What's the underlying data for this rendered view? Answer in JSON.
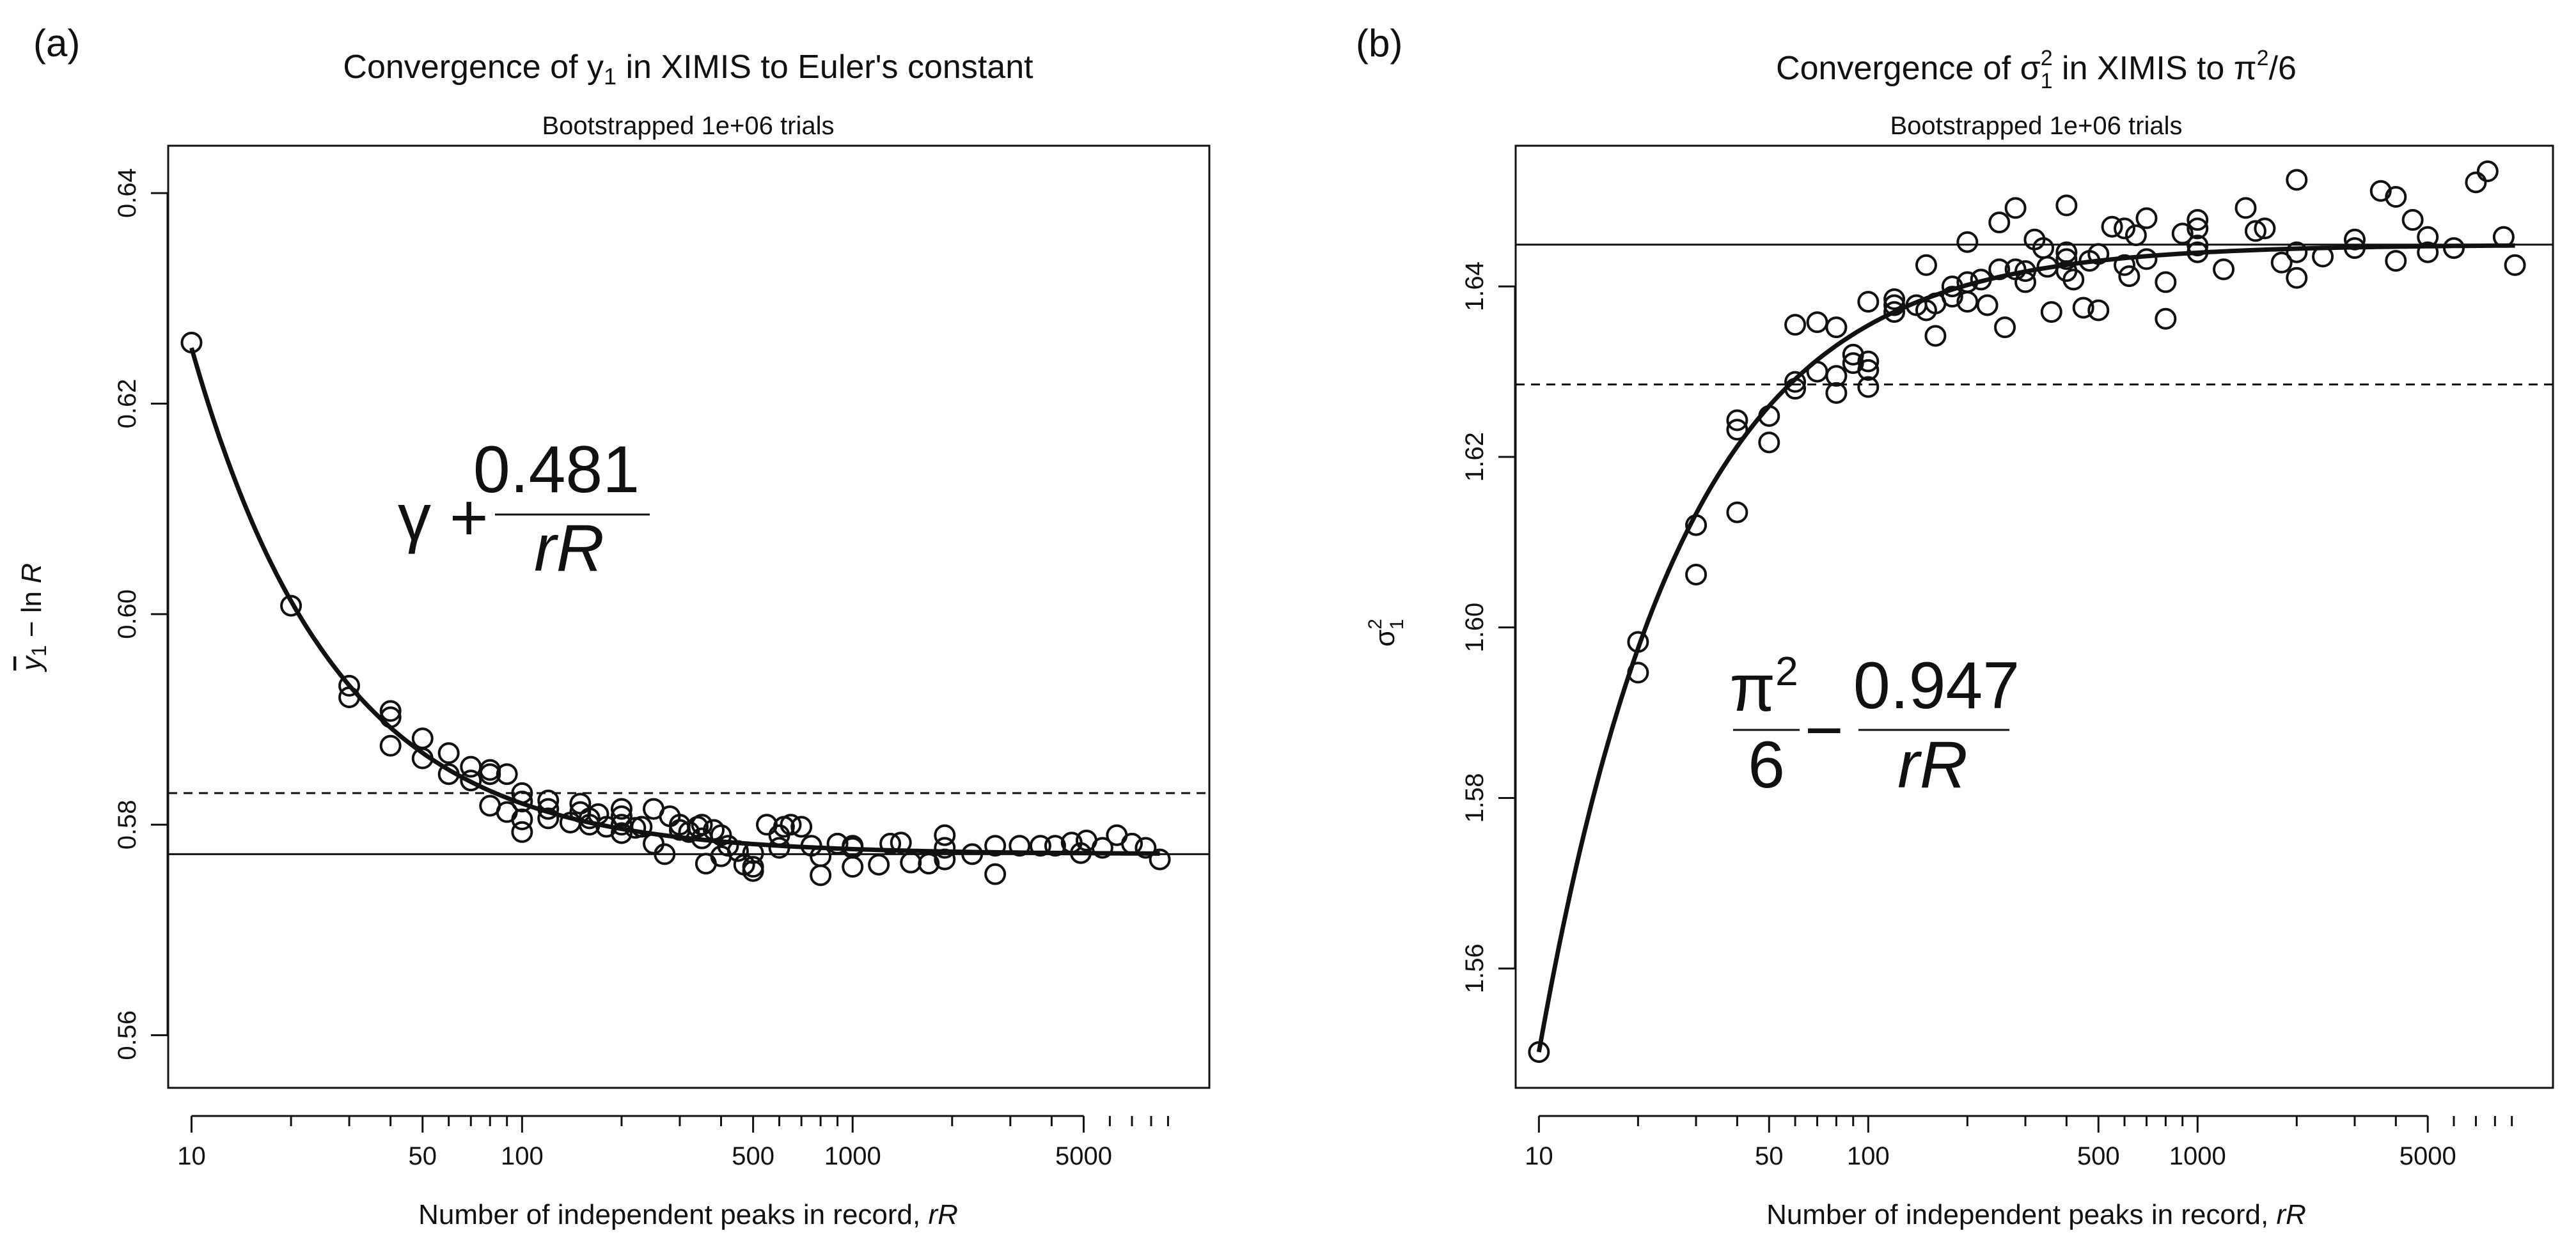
{
  "chart_data": [
    {
      "panel_label": "(a)",
      "type": "scatter",
      "title_prefix": "Convergence of ",
      "title_symbol": "y",
      "title_subscript": "1",
      "title_suffix": " in XIMIS to Euler's constant",
      "subtitle": "Bootstrapped 1e+06 trials",
      "xlabel_text": "Number of independent peaks in record, ",
      "xlabel_italic": "rR",
      "ylabel_symbol": "y",
      "ylabel_subscript": "1",
      "ylabel_suffix": " − ln ",
      "ylabel_italic": "R",
      "x_scale": "log",
      "xlim": [
        8.5,
        12000
      ],
      "ylim": [
        0.555,
        0.6445
      ],
      "x_ticks": [
        10,
        50,
        100,
        500,
        1000,
        5000
      ],
      "x_tick_labels": [
        "10",
        "50",
        "100",
        "500",
        "1000",
        "5000"
      ],
      "y_ticks": [
        0.56,
        0.58,
        0.6,
        0.62,
        0.64
      ],
      "y_tick_labels": [
        "0.56",
        "0.58",
        "0.60",
        "0.62",
        "0.64"
      ],
      "formula": {
        "lead": "γ +",
        "numerator": "0.481",
        "denominator": "rR"
      },
      "curve": {
        "base": 0.5772,
        "coef": 0.481,
        "sign": 1
      },
      "hlines": [
        {
          "y": 0.5772,
          "style": "solid"
        },
        {
          "y": 0.583,
          "style": "dashed"
        }
      ],
      "points": [
        [
          10,
          0.6258
        ],
        [
          20,
          0.6008
        ],
        [
          30,
          0.5932
        ],
        [
          30,
          0.5921
        ],
        [
          40,
          0.5908
        ],
        [
          40,
          0.5902
        ],
        [
          40,
          0.5875
        ],
        [
          50,
          0.5882
        ],
        [
          50,
          0.5863
        ],
        [
          60,
          0.5868
        ],
        [
          60,
          0.5848
        ],
        [
          70,
          0.5855
        ],
        [
          70,
          0.5842
        ],
        [
          80,
          0.5852
        ],
        [
          80,
          0.5818
        ],
        [
          80,
          0.5848
        ],
        [
          90,
          0.5848
        ],
        [
          90,
          0.5812
        ],
        [
          100,
          0.583
        ],
        [
          100,
          0.5822
        ],
        [
          100,
          0.5805
        ],
        [
          100,
          0.5793
        ],
        [
          120,
          0.5823
        ],
        [
          120,
          0.5815
        ],
        [
          120,
          0.5806
        ],
        [
          140,
          0.5802
        ],
        [
          150,
          0.582
        ],
        [
          150,
          0.5812
        ],
        [
          160,
          0.5806
        ],
        [
          160,
          0.58
        ],
        [
          170,
          0.581
        ],
        [
          180,
          0.5798
        ],
        [
          200,
          0.5815
        ],
        [
          200,
          0.5808
        ],
        [
          200,
          0.58
        ],
        [
          200,
          0.5792
        ],
        [
          220,
          0.5797
        ],
        [
          230,
          0.5798
        ],
        [
          250,
          0.5815
        ],
        [
          250,
          0.5782
        ],
        [
          270,
          0.5772
        ],
        [
          280,
          0.5808
        ],
        [
          300,
          0.58
        ],
        [
          300,
          0.5795
        ],
        [
          320,
          0.5793
        ],
        [
          340,
          0.5798
        ],
        [
          350,
          0.58
        ],
        [
          350,
          0.5787
        ],
        [
          360,
          0.5763
        ],
        [
          380,
          0.5795
        ],
        [
          400,
          0.579
        ],
        [
          400,
          0.577
        ],
        [
          420,
          0.578
        ],
        [
          450,
          0.5775
        ],
        [
          470,
          0.5762
        ],
        [
          500,
          0.5773
        ],
        [
          500,
          0.576
        ],
        [
          500,
          0.5756
        ],
        [
          550,
          0.58
        ],
        [
          600,
          0.579
        ],
        [
          600,
          0.5778
        ],
        [
          620,
          0.5798
        ],
        [
          650,
          0.58
        ],
        [
          700,
          0.5798
        ],
        [
          750,
          0.578
        ],
        [
          800,
          0.577
        ],
        [
          800,
          0.5752
        ],
        [
          900,
          0.5782
        ],
        [
          1000,
          0.578
        ],
        [
          1000,
          0.5778
        ],
        [
          1000,
          0.576
        ],
        [
          1200,
          0.5762
        ],
        [
          1300,
          0.5782
        ],
        [
          1400,
          0.5783
        ],
        [
          1500,
          0.5764
        ],
        [
          1700,
          0.5763
        ],
        [
          1900,
          0.579
        ],
        [
          1900,
          0.5778
        ],
        [
          1900,
          0.5767
        ],
        [
          2300,
          0.5772
        ],
        [
          2700,
          0.578
        ],
        [
          2700,
          0.5753
        ],
        [
          3200,
          0.578
        ],
        [
          3700,
          0.578
        ],
        [
          4100,
          0.578
        ],
        [
          4600,
          0.5783
        ],
        [
          4900,
          0.5773
        ],
        [
          5100,
          0.5785
        ],
        [
          5700,
          0.5778
        ],
        [
          6300,
          0.579
        ],
        [
          7000,
          0.5782
        ],
        [
          7700,
          0.5778
        ],
        [
          8500,
          0.5767
        ]
      ]
    },
    {
      "panel_label": "(b)",
      "type": "scatter",
      "title_prefix": "Convergence of ",
      "title_symbol": "σ",
      "title_superscript": "2",
      "title_subscript": "1",
      "title_suffix": " in XIMIS to π",
      "title_tail_superscript": "2",
      "title_tail": "/6",
      "subtitle": "Bootstrapped 1e+06 trials",
      "xlabel_text": "Number of independent peaks in record, ",
      "xlabel_italic": "rR",
      "ylabel_symbol": "σ",
      "ylabel_superscript": "2",
      "ylabel_subscript": "1",
      "x_scale": "log",
      "xlim": [
        8.5,
        12000
      ],
      "ylim": [
        1.546,
        1.6565
      ],
      "x_ticks": [
        10,
        50,
        100,
        500,
        1000,
        5000
      ],
      "x_tick_labels": [
        "10",
        "50",
        "100",
        "500",
        "1000",
        "5000"
      ],
      "y_ticks": [
        1.56,
        1.58,
        1.6,
        1.62,
        1.64
      ],
      "y_tick_labels": [
        "1.56",
        "1.58",
        "1.60",
        "1.62",
        "1.64"
      ],
      "formula": {
        "num1": "π",
        "num1_sup": "2",
        "den1": "6",
        "minus": "−",
        "numerator": "0.947",
        "denominator": "rR"
      },
      "curve": {
        "base": 1.6449,
        "coef": 0.947,
        "sign": -1
      },
      "hlines": [
        {
          "y": 1.6449,
          "style": "solid"
        },
        {
          "y": 1.6285,
          "style": "dashed"
        }
      ],
      "points": [
        [
          10,
          1.5502
        ],
        [
          20,
          1.5983
        ],
        [
          20,
          1.5947
        ],
        [
          30,
          1.612
        ],
        [
          30,
          1.6062
        ],
        [
          40,
          1.6243
        ],
        [
          40,
          1.6232
        ],
        [
          40,
          1.6135
        ],
        [
          50,
          1.6248
        ],
        [
          50,
          1.6217
        ],
        [
          60,
          1.6355
        ],
        [
          60,
          1.6288
        ],
        [
          60,
          1.628
        ],
        [
          70,
          1.6358
        ],
        [
          70,
          1.63
        ],
        [
          80,
          1.6352
        ],
        [
          80,
          1.6295
        ],
        [
          80,
          1.6275
        ],
        [
          90,
          1.632
        ],
        [
          90,
          1.631
        ],
        [
          100,
          1.6382
        ],
        [
          100,
          1.6312
        ],
        [
          100,
          1.6302
        ],
        [
          100,
          1.6282
        ],
        [
          120,
          1.6385
        ],
        [
          120,
          1.6378
        ],
        [
          120,
          1.637
        ],
        [
          140,
          1.6378
        ],
        [
          150,
          1.6425
        ],
        [
          150,
          1.6372
        ],
        [
          160,
          1.638
        ],
        [
          160,
          1.6342
        ],
        [
          180,
          1.64
        ],
        [
          180,
          1.6388
        ],
        [
          200,
          1.6452
        ],
        [
          200,
          1.6405
        ],
        [
          200,
          1.6382
        ],
        [
          220,
          1.6408
        ],
        [
          230,
          1.6378
        ],
        [
          250,
          1.6475
        ],
        [
          250,
          1.642
        ],
        [
          260,
          1.6352
        ],
        [
          280,
          1.6492
        ],
        [
          280,
          1.642
        ],
        [
          300,
          1.6418
        ],
        [
          300,
          1.6405
        ],
        [
          320,
          1.6455
        ],
        [
          340,
          1.6445
        ],
        [
          350,
          1.6423
        ],
        [
          360,
          1.637
        ],
        [
          400,
          1.6495
        ],
        [
          400,
          1.644
        ],
        [
          400,
          1.6432
        ],
        [
          400,
          1.6418
        ],
        [
          420,
          1.6408
        ],
        [
          450,
          1.6375
        ],
        [
          470,
          1.643
        ],
        [
          500,
          1.6438
        ],
        [
          500,
          1.6372
        ],
        [
          550,
          1.647
        ],
        [
          600,
          1.6468
        ],
        [
          600,
          1.6425
        ],
        [
          620,
          1.6412
        ],
        [
          650,
          1.646
        ],
        [
          700,
          1.648
        ],
        [
          700,
          1.6432
        ],
        [
          800,
          1.6405
        ],
        [
          800,
          1.6362
        ],
        [
          900,
          1.6462
        ],
        [
          1000,
          1.6478
        ],
        [
          1000,
          1.6468
        ],
        [
          1000,
          1.6448
        ],
        [
          1000,
          1.644
        ],
        [
          1200,
          1.642
        ],
        [
          1400,
          1.6492
        ],
        [
          1500,
          1.6465
        ],
        [
          1600,
          1.6468
        ],
        [
          1800,
          1.6428
        ],
        [
          2000,
          1.6525
        ],
        [
          2000,
          1.644
        ],
        [
          2000,
          1.641
        ],
        [
          2400,
          1.6435
        ],
        [
          3000,
          1.6455
        ],
        [
          3000,
          1.6445
        ],
        [
          3600,
          1.6512
        ],
        [
          4000,
          1.6505
        ],
        [
          4000,
          1.643
        ],
        [
          4500,
          1.6478
        ],
        [
          5000,
          1.6458
        ],
        [
          5000,
          1.644
        ],
        [
          6000,
          1.6445
        ],
        [
          7000,
          1.6522
        ],
        [
          7600,
          1.6535
        ],
        [
          8500,
          1.6458
        ],
        [
          9200,
          1.6425
        ]
      ]
    }
  ]
}
